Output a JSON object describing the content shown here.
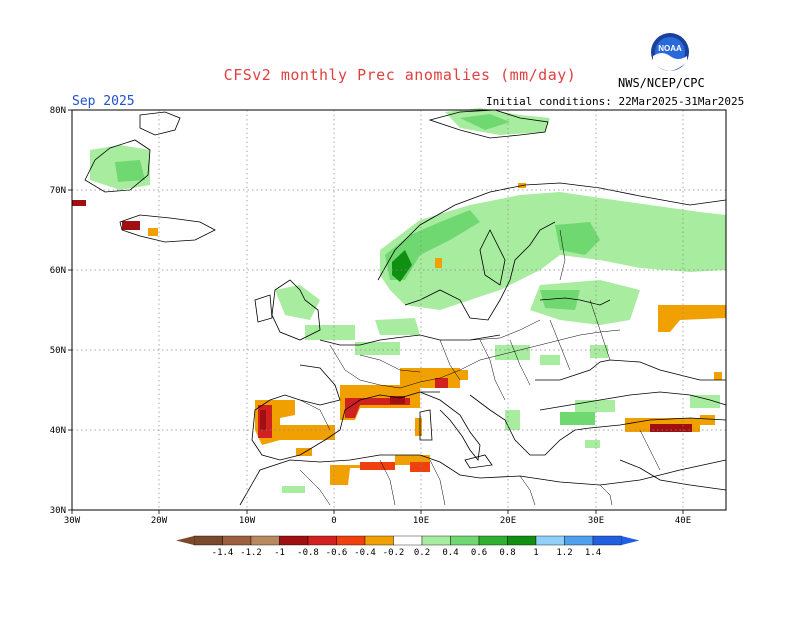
{
  "header": {
    "title": "CFSv2 monthly Prec anomalies (mm/day)",
    "month": "Sep 2025",
    "initial_conditions": "Initial conditions: 22Mar2025-31Mar2025",
    "agency": "NWS/NCEP/CPC",
    "logo_text": "NOAA"
  },
  "map": {
    "lon_range": [
      -30,
      45
    ],
    "lat_range": [
      30,
      80
    ],
    "lat_labels": [
      "80N",
      "70N",
      "60N",
      "50N",
      "40N",
      "30N"
    ],
    "lon_labels": [
      "30W",
      "20W",
      "10W",
      "0",
      "10E",
      "20E",
      "30E",
      "40E"
    ],
    "gridlines": true
  },
  "colorbar": {
    "labels": [
      "-1.4",
      "-1.2",
      "-1",
      "-0.8",
      "-0.6",
      "-0.4",
      "-0.2",
      "0.2",
      "0.4",
      "0.6",
      "0.8",
      "1",
      "1.2",
      "1.4"
    ],
    "colors": [
      "#7a4a2a",
      "#9c6040",
      "#b88860",
      "#a01010",
      "#d02020",
      "#f04010",
      "#f0a000",
      "#ffffff",
      "#a8eca0",
      "#70d870",
      "#30b030",
      "#109010",
      "#90d0f8",
      "#50a0f0",
      "#2060e0"
    ]
  }
}
